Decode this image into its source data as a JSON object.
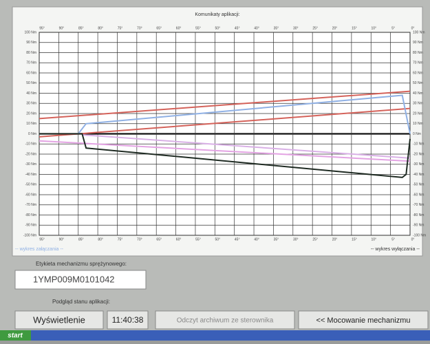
{
  "header": {
    "title": "Komunikaty aplikacji:"
  },
  "chart_data": {
    "type": "line",
    "xlim": [
      95,
      0
    ],
    "xticks": [
      {
        "value": 95,
        "label": "95°"
      },
      {
        "value": 90,
        "label": "90°"
      },
      {
        "value": 85,
        "label": "85°"
      },
      {
        "value": 80,
        "label": "80°"
      },
      {
        "value": 75,
        "label": "75°"
      },
      {
        "value": 70,
        "label": "70°"
      },
      {
        "value": 65,
        "label": "65°"
      },
      {
        "value": 60,
        "label": "60°"
      },
      {
        "value": 55,
        "label": "55°"
      },
      {
        "value": 50,
        "label": "50°"
      },
      {
        "value": 45,
        "label": "45°"
      },
      {
        "value": 40,
        "label": "40°"
      },
      {
        "value": 35,
        "label": "35°"
      },
      {
        "value": 30,
        "label": "30°"
      },
      {
        "value": 25,
        "label": "25°"
      },
      {
        "value": 20,
        "label": "20°"
      },
      {
        "value": 15,
        "label": "15°"
      },
      {
        "value": 10,
        "label": "10°"
      },
      {
        "value": 5,
        "label": "5°"
      },
      {
        "value": 0,
        "label": "0°"
      }
    ],
    "ylim": [
      -100,
      100
    ],
    "yticks": [
      {
        "value": 100,
        "label": "100 Nm"
      },
      {
        "value": 90,
        "label": "90 Nm"
      },
      {
        "value": 80,
        "label": "80 Nm"
      },
      {
        "value": 70,
        "label": "70 Nm"
      },
      {
        "value": 60,
        "label": "60 Nm"
      },
      {
        "value": 50,
        "label": "50 Nm"
      },
      {
        "value": 40,
        "label": "40 Nm"
      },
      {
        "value": 30,
        "label": "30 Nm"
      },
      {
        "value": 20,
        "label": "20 Nm"
      },
      {
        "value": 10,
        "label": "10 Nm"
      },
      {
        "value": 0,
        "label": "0 Nm"
      },
      {
        "value": -10,
        "label": "-10 Nm"
      },
      {
        "value": -20,
        "label": "-20 Nm"
      },
      {
        "value": -30,
        "label": "-30 Nm"
      },
      {
        "value": -40,
        "label": "-40 Nm"
      },
      {
        "value": -50,
        "label": "-50 Nm"
      },
      {
        "value": -60,
        "label": "-60 Nm"
      },
      {
        "value": -70,
        "label": "-70 Nm"
      },
      {
        "value": -80,
        "label": "-80 Nm"
      },
      {
        "value": -90,
        "label": "-90 Nm"
      },
      {
        "value": -100,
        "label": "-100 Nm"
      }
    ],
    "grid": true,
    "zero_line": true,
    "series": [
      {
        "color": "#d4625a",
        "x": [
          95,
          0
        ],
        "values": [
          15,
          42
        ]
      },
      {
        "color": "#d4625a",
        "x": [
          95,
          0
        ],
        "values": [
          -3,
          25
        ]
      },
      {
        "color": "#8fb0e4",
        "x": [
          95,
          85,
          83,
          2,
          0
        ],
        "values": [
          0,
          0,
          10,
          38,
          0
        ]
      },
      {
        "color": "#e3a3e3",
        "x": [
          95,
          0
        ],
        "values": [
          -7,
          -27
        ]
      },
      {
        "color": "#d9b0e6",
        "x": [
          84,
          0
        ],
        "values": [
          -1,
          -24
        ]
      },
      {
        "color": "#1e2a22",
        "x": [
          95,
          84,
          83,
          2,
          1,
          0
        ],
        "values": [
          0,
          0,
          -14,
          -43,
          -40,
          -5
        ]
      }
    ],
    "left_label": "-- wykres załączania --",
    "right_label": "-- wykres wyłączania --"
  },
  "form": {
    "label_title": "Etykieta mechanizmu sprężynowego:",
    "label_value": "1YMP009M0101042",
    "status_title": "Podgląd stanu aplikacji:",
    "buttons": [
      "Wyświetlenie",
      "11:40:38",
      "Odczyt archiwum ze sterownika",
      "<< Mocowanie mechanizmu"
    ]
  },
  "taskbar": {
    "start": "start"
  }
}
